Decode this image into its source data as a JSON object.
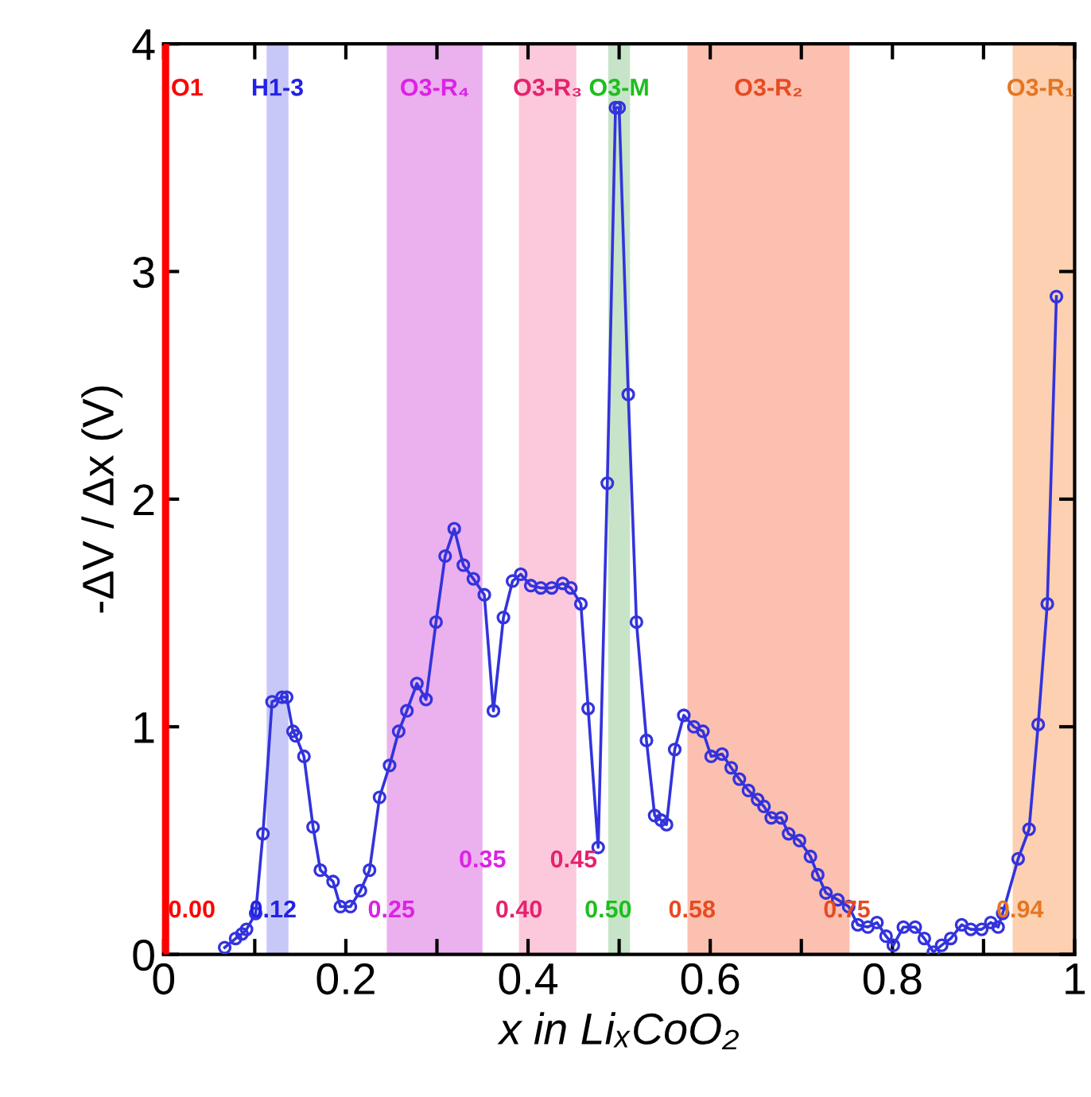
{
  "chart_data": {
    "type": "line",
    "xlabel": "x in LiₓCoO₂",
    "ylabel": "-ΔV / Δx (V)",
    "xlim": [
      0,
      1
    ],
    "ylim": [
      0,
      4
    ],
    "xticks": [
      0,
      {
        "value": 0.1,
        "label": null
      },
      0.2,
      {
        "value": 0.3,
        "label": null
      },
      0.4,
      {
        "value": 0.5,
        "label": null
      },
      0.6,
      {
        "value": 0.7,
        "label": null
      },
      0.8,
      {
        "value": 0.9,
        "label": null
      },
      1
    ],
    "yticks": [
      0,
      1,
      2,
      3,
      4
    ],
    "grid": false,
    "legend": false,
    "marker": "circle",
    "line_style": "solid",
    "series": [
      {
        "color": "#3333dd",
        "x": [
          0.067,
          0.079,
          0.086,
          0.091,
          0.101,
          0.109,
          0.119,
          0.13,
          0.135,
          0.142,
          0.145,
          0.154,
          0.164,
          0.172,
          0.186,
          0.194,
          0.205,
          0.216,
          0.226,
          0.237,
          0.248,
          0.258,
          0.267,
          0.278,
          0.288,
          0.299,
          0.309,
          0.319,
          0.329,
          0.34,
          0.352,
          0.362,
          0.373,
          0.383,
          0.392,
          0.403,
          0.414,
          0.426,
          0.438,
          0.447,
          0.458,
          0.466,
          0.477,
          0.487,
          0.496,
          0.5,
          0.51,
          0.519,
          0.53,
          0.539,
          0.546,
          0.552,
          0.561,
          0.571,
          0.582,
          0.592,
          0.601,
          0.613,
          0.623,
          0.632,
          0.642,
          0.652,
          0.659,
          0.667,
          0.678,
          0.686,
          0.698,
          0.71,
          0.718,
          0.727,
          0.74,
          0.752,
          0.762,
          0.773,
          0.783,
          0.793,
          0.801,
          0.812,
          0.825,
          0.835,
          0.845,
          0.854,
          0.864,
          0.876,
          0.886,
          0.898,
          0.908,
          0.916,
          0.921,
          0.938,
          0.95,
          0.96,
          0.97,
          0.98
        ],
        "values": [
          0.03,
          0.07,
          0.09,
          0.11,
          0.18,
          0.53,
          1.11,
          1.13,
          1.13,
          0.98,
          0.96,
          0.87,
          0.56,
          0.37,
          0.32,
          0.21,
          0.21,
          0.28,
          0.37,
          0.69,
          0.83,
          0.98,
          1.07,
          1.19,
          1.12,
          1.46,
          1.75,
          1.87,
          1.71,
          1.65,
          1.58,
          1.07,
          1.48,
          1.64,
          1.67,
          1.62,
          1.61,
          1.61,
          1.63,
          1.61,
          1.54,
          1.08,
          0.47,
          2.07,
          3.72,
          3.72,
          2.46,
          1.46,
          0.94,
          0.61,
          0.59,
          0.57,
          0.9,
          1.05,
          1.0,
          0.98,
          0.87,
          0.88,
          0.82,
          0.77,
          0.72,
          0.68,
          0.65,
          0.6,
          0.6,
          0.53,
          0.5,
          0.43,
          0.35,
          0.27,
          0.24,
          0.21,
          0.13,
          0.12,
          0.14,
          0.08,
          0.04,
          0.12,
          0.12,
          0.07,
          0.01,
          0.04,
          0.07,
          0.13,
          0.11,
          0.11,
          0.14,
          0.12,
          0.18,
          0.42,
          0.55,
          1.01,
          1.54,
          2.89
        ]
      }
    ],
    "ref_lines": [
      {
        "axis": "x",
        "value": 0,
        "label": "O1",
        "color": "#ff0000"
      }
    ],
    "bands": [
      {
        "axis": "x",
        "from": 0.113,
        "to": 0.137,
        "label": "H1-3",
        "color": "#c8c8f8"
      },
      {
        "axis": "x",
        "from": 0.245,
        "to": 0.35,
        "label": "O3-R₄",
        "color": "#ebb0ee"
      },
      {
        "axis": "x",
        "from": 0.39,
        "to": 0.453,
        "label": "O3-R₃",
        "color": "#fcc8dc"
      },
      {
        "axis": "x",
        "from": 0.488,
        "to": 0.512,
        "label": "O3-M",
        "color": "#c8e4c8"
      },
      {
        "axis": "x",
        "from": 0.575,
        "to": 0.753,
        "label": "O3-R₂",
        "color": "#fcc0b0"
      },
      {
        "axis": "x",
        "from": 0.932,
        "to": 1.0,
        "label": "O3-R₁",
        "color": "#fcd0b0"
      }
    ],
    "annotations": [
      {
        "text": "0.00",
        "x": 0.0,
        "y": 0.19
      },
      {
        "text": "0.12",
        "x": 0.12,
        "y": 0.19
      },
      {
        "text": "0.25",
        "x": 0.25,
        "y": 0.19
      },
      {
        "text": "0.35",
        "x": 0.35,
        "y": 0.41
      },
      {
        "text": "0.40",
        "x": 0.39,
        "y": 0.19
      },
      {
        "text": "0.45",
        "x": 0.45,
        "y": 0.41
      },
      {
        "text": "0.50",
        "x": 0.488,
        "y": 0.19
      },
      {
        "text": "0.58",
        "x": 0.58,
        "y": 0.19
      },
      {
        "text": "0.75",
        "x": 0.75,
        "y": 0.19
      },
      {
        "text": "0.94",
        "x": 0.94,
        "y": 0.19
      }
    ]
  }
}
